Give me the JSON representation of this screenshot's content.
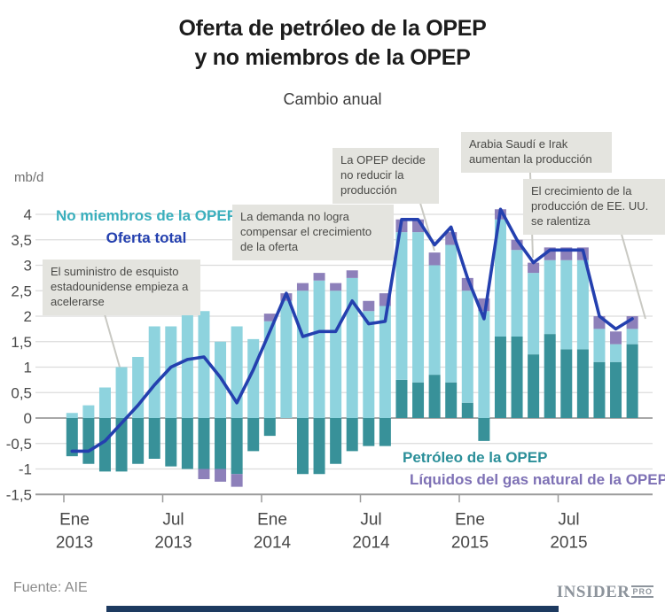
{
  "header": {
    "title_line1": "Oferta de petróleo de la OPEP",
    "title_line2": "y no miembros de la OPEP",
    "subtitle": "Cambio anual"
  },
  "legend": {
    "non_opec": "No miembros de la OPEP",
    "total": "Oferta total",
    "opec_crude": "Petróleo de la OPEP",
    "opec_ngl": "Líquidos del gas natural de la OPEP"
  },
  "annotations": [
    {
      "text": "El suministro de esquisto estadounidense empieza a acelerarse"
    },
    {
      "text": "La demanda no logra compensar el crecimiento de la oferta"
    },
    {
      "text": "La OPEP decide no reducir la producción"
    },
    {
      "text": "Arabia Saudí e Irak aumentan la producción"
    },
    {
      "text": "El crecimiento de la producción de EE. UU. se ralentiza"
    }
  ],
  "footer": {
    "source": "Fuente: AIE",
    "logo_main": "INSIDER",
    "logo_sub": "PRO"
  },
  "colors": {
    "non_opec_bar": "#8ed3de",
    "opec_crude_bar": "#389199",
    "opec_ngl_bar": "#8d80ba",
    "total_line": "#2440af",
    "grid": "#dcdcdc",
    "zero_line": "#a8a8a8",
    "axis": "#9b9b9b",
    "leader": "#c9c9c3",
    "annotation_bg": "#e4e4df",
    "bottom_bar": "#1d3a60"
  },
  "chart_data": {
    "type": "bar",
    "subtype": "stacked-bars-with-line",
    "unit_label": "mb/d",
    "ylim": [
      -1.5,
      4
    ],
    "y_tick_step": 0.5,
    "grid": true,
    "y_ticks": [
      {
        "value": 4,
        "label": "4"
      },
      {
        "value": 3.5,
        "label": "3,5"
      },
      {
        "value": 3,
        "label": "3"
      },
      {
        "value": 2.5,
        "label": "2,5"
      },
      {
        "value": 2,
        "label": "2"
      },
      {
        "value": 1.5,
        "label": "1,5"
      },
      {
        "value": 1,
        "label": "1"
      },
      {
        "value": 0.5,
        "label": "0,5"
      },
      {
        "value": 0,
        "label": "0"
      },
      {
        "value": -0.5,
        "label": "-0,5"
      },
      {
        "value": -1,
        "label": "-1"
      },
      {
        "value": -1.5,
        "label": "-1,5"
      }
    ],
    "x_ticks": [
      {
        "month_index": 0,
        "month": "Ene",
        "year": "2013"
      },
      {
        "month_index": 6,
        "month": "Jul",
        "year": "2013"
      },
      {
        "month_index": 12,
        "month": "Ene",
        "year": "2014"
      },
      {
        "month_index": 18,
        "month": "Jul",
        "year": "2014"
      },
      {
        "month_index": 24,
        "month": "Ene",
        "year": "2015"
      },
      {
        "month_index": 30,
        "month": "Jul",
        "year": "2015"
      }
    ],
    "categories": [
      "Ene 2013",
      "Feb 2013",
      "Mar 2013",
      "Abr 2013",
      "May 2013",
      "Jun 2013",
      "Jul 2013",
      "Ago 2013",
      "Sep 2013",
      "Oct 2013",
      "Nov 2013",
      "Dic 2013",
      "Ene 2014",
      "Feb 2014",
      "Mar 2014",
      "Abr 2014",
      "May 2014",
      "Jun 2014",
      "Jul 2014",
      "Ago 2014",
      "Sep 2014",
      "Oct 2014",
      "Nov 2014",
      "Dic 2014",
      "Ene 2015",
      "Feb 2015",
      "Mar 2015",
      "Abr 2015",
      "May 2015",
      "Jun 2015",
      "Jul 2015",
      "Ago 2015",
      "Sep 2015",
      "Oct 2015",
      "Nov 2015"
    ],
    "series": [
      {
        "name": "No miembros de la OPEP",
        "color": "#8ed3de",
        "values": [
          0.1,
          0.25,
          0.6,
          1.0,
          1.2,
          1.8,
          1.8,
          2.1,
          2.1,
          1.5,
          1.8,
          1.55,
          1.9,
          2.3,
          2.5,
          2.7,
          2.5,
          2.75,
          2.1,
          2.2,
          2.9,
          2.95,
          2.15,
          2.7,
          2.2,
          2.1,
          2.3,
          1.7,
          1.6,
          1.45,
          1.75,
          1.75,
          0.65,
          0.35,
          0.3
        ]
      },
      {
        "name": "Petróleo de la OPEP",
        "color": "#389199",
        "values": [
          -0.75,
          -0.9,
          -1.05,
          -1.05,
          -0.9,
          -0.8,
          -0.95,
          -1.0,
          -1.0,
          -1.0,
          -1.1,
          -0.65,
          -0.35,
          0.0,
          -1.1,
          -1.1,
          -0.9,
          -0.65,
          -0.55,
          -0.55,
          0.75,
          0.7,
          0.85,
          0.7,
          0.3,
          -0.45,
          1.6,
          1.6,
          1.25,
          1.65,
          1.35,
          1.35,
          1.1,
          1.1,
          1.45
        ]
      },
      {
        "name": "Líquidos del gas natural de la OPEP",
        "color": "#8d80ba",
        "values": [
          0,
          0,
          0,
          0,
          0,
          0,
          0,
          0,
          -0.2,
          -0.25,
          -0.25,
          0,
          0.15,
          0.15,
          0.15,
          0.15,
          0.15,
          0.15,
          0.2,
          0.25,
          0.25,
          0.25,
          0.25,
          0.25,
          0.25,
          0.25,
          0.2,
          0.2,
          0.2,
          0.25,
          0.25,
          0.25,
          0.25,
          0.25,
          0.25
        ]
      }
    ],
    "line": {
      "name": "Oferta total",
      "color": "#2440af",
      "values": [
        -0.65,
        -0.65,
        -0.45,
        -0.1,
        0.25,
        0.65,
        1.0,
        1.15,
        1.2,
        0.8,
        0.3,
        0.95,
        1.7,
        2.45,
        1.6,
        1.7,
        1.7,
        2.3,
        1.85,
        1.9,
        3.9,
        3.9,
        3.4,
        3.75,
        2.75,
        1.95,
        4.1,
        3.5,
        3.05,
        3.3,
        3.3,
        3.3,
        2.0,
        1.75,
        1.95
      ]
    }
  }
}
